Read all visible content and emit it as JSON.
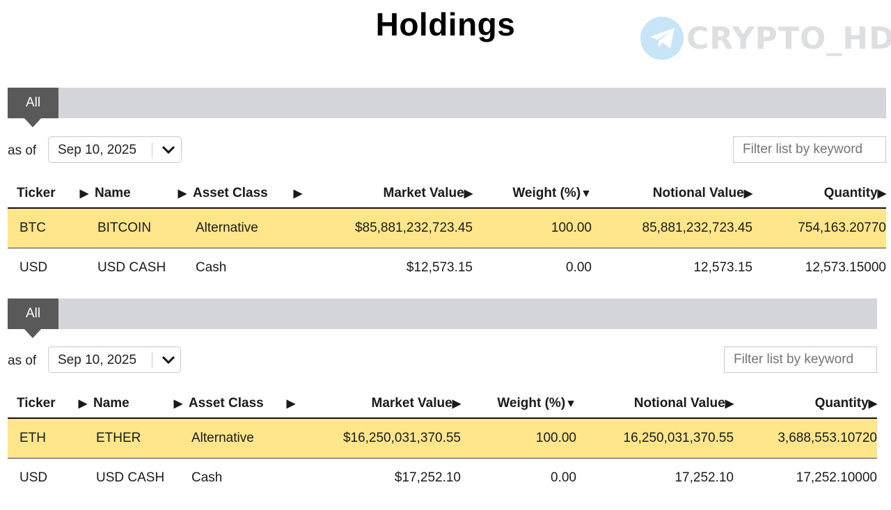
{
  "page": {
    "title": "Holdings"
  },
  "watermark": {
    "text": "CRYPTO_HD",
    "icon": "telegram-icon",
    "color": "#3aa6e0"
  },
  "colors": {
    "tab_bg": "#595959",
    "tabbar_bg": "#d5d5dc",
    "highlight": "#ffe68a"
  },
  "sort_icons": {
    "unsorted": "▶",
    "sorted_desc": "▼"
  },
  "sections": [
    {
      "tab_label": "All",
      "as_of_label": "as of",
      "date_value": "Sep 10, 2025",
      "filter_placeholder": "Filter list by keyword",
      "columns": {
        "ticker": "Ticker",
        "name": "Name",
        "asset_class": "Asset Class",
        "market_value": "Market Value",
        "weight": "Weight (%)",
        "notional_value": "Notional Value",
        "quantity": "Quantity"
      },
      "rows": [
        {
          "ticker": "BTC",
          "name": "BITCOIN",
          "asset_class": "Alternative",
          "market_value": "$85,881,232,723.45",
          "weight": "100.00",
          "notional_value": "85,881,232,723.45",
          "quantity": "754,163.20770"
        },
        {
          "ticker": "USD",
          "name": "USD CASH",
          "asset_class": "Cash",
          "market_value": "$12,573.15",
          "weight": "0.00",
          "notional_value": "12,573.15",
          "quantity": "12,573.15000"
        }
      ]
    },
    {
      "tab_label": "All",
      "as_of_label": "as of",
      "date_value": "Sep 10, 2025",
      "filter_placeholder": "Filter list by keyword",
      "columns": {
        "ticker": "Ticker",
        "name": "Name",
        "asset_class": "Asset Class",
        "market_value": "Market Value",
        "weight": "Weight (%)",
        "notional_value": "Notional Value",
        "quantity": "Quantity"
      },
      "rows": [
        {
          "ticker": "ETH",
          "name": "ETHER",
          "asset_class": "Alternative",
          "market_value": "$16,250,031,370.55",
          "weight": "100.00",
          "notional_value": "16,250,031,370.55",
          "quantity": "3,688,553.10720"
        },
        {
          "ticker": "USD",
          "name": "USD CASH",
          "asset_class": "Cash",
          "market_value": "$17,252.10",
          "weight": "0.00",
          "notional_value": "17,252.10",
          "quantity": "17,252.10000"
        }
      ]
    }
  ]
}
